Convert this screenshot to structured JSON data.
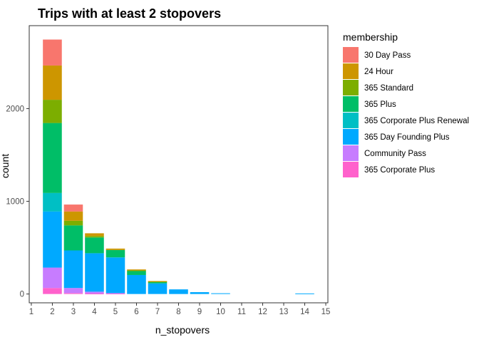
{
  "chart_data": {
    "type": "bar",
    "stacked": true,
    "title": "Trips with at least 2 stopovers",
    "xlabel": "n_stopovers",
    "ylabel": "count",
    "xlim": [
      0.9,
      15.1
    ],
    "ylim": [
      -95,
      2895
    ],
    "x_ticks": [
      1,
      2,
      3,
      4,
      5,
      6,
      7,
      8,
      9,
      10,
      11,
      12,
      13,
      14,
      15
    ],
    "y_ticks": [
      0,
      1000,
      2000
    ],
    "grid": false,
    "legend_position": "right",
    "legend_title": "membership",
    "x": [
      2,
      3,
      4,
      5,
      6,
      7,
      8,
      9,
      10,
      14
    ],
    "series": [
      {
        "name": "30 Day Pass",
        "color": "#F8766D",
        "values": [
          280,
          75,
          0,
          0,
          0,
          0,
          0,
          0,
          0,
          0
        ]
      },
      {
        "name": "24 Hour",
        "color": "#CD9600",
        "values": [
          370,
          100,
          30,
          15,
          10,
          5,
          0,
          0,
          0,
          0
        ]
      },
      {
        "name": "365 Standard",
        "color": "#7CAE00",
        "values": [
          250,
          50,
          15,
          0,
          5,
          5,
          0,
          0,
          0,
          0
        ]
      },
      {
        "name": "365 Plus",
        "color": "#00BE67",
        "values": [
          755,
          270,
          170,
          80,
          45,
          15,
          0,
          0,
          0,
          0
        ]
      },
      {
        "name": "365 Corporate Plus Renewal",
        "color": "#00BFC4",
        "values": [
          200,
          0,
          0,
          0,
          0,
          0,
          0,
          0,
          0,
          0
        ]
      },
      {
        "name": "365 Day Founding Plus",
        "color": "#00A9FF",
        "values": [
          605,
          405,
          415,
          385,
          205,
          115,
          50,
          20,
          8,
          6
        ]
      },
      {
        "name": "Community Pass",
        "color": "#C77CFF",
        "values": [
          220,
          55,
          20,
          5,
          0,
          0,
          0,
          0,
          0,
          0
        ]
      },
      {
        "name": "365 Corporate Plus",
        "color": "#FF61CC",
        "values": [
          65,
          10,
          5,
          5,
          0,
          0,
          0,
          0,
          0,
          0
        ]
      }
    ]
  }
}
